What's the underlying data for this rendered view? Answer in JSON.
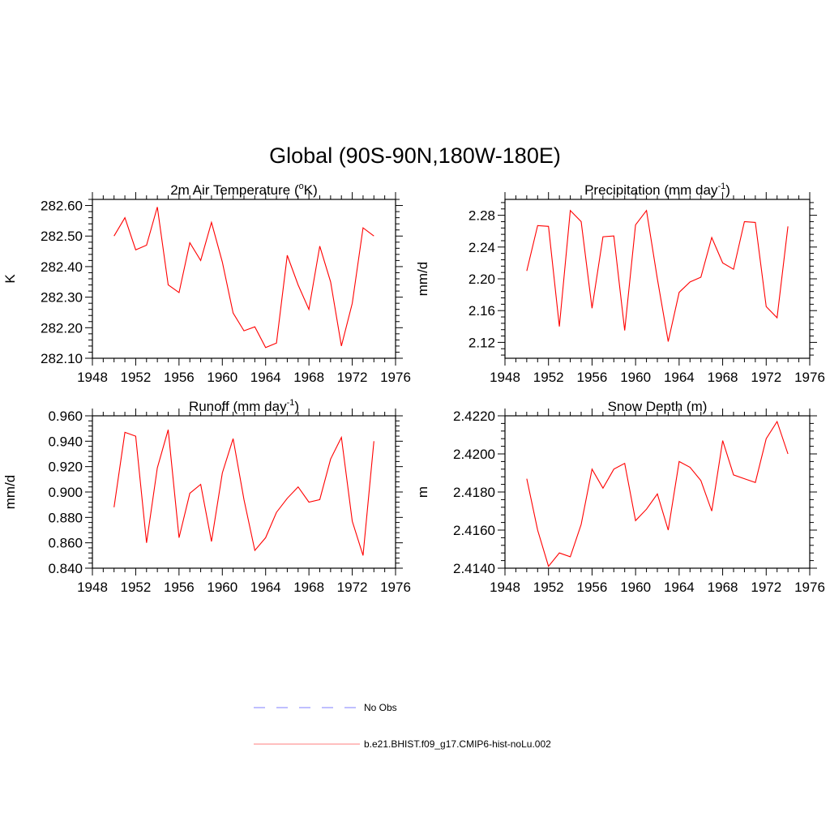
{
  "figure": {
    "title": "Global (90S-90N,180W-180E)"
  },
  "colors": {
    "model_line": "#ff0000",
    "obs_line": "#9999ff",
    "axis": "#000000"
  },
  "chart_data": [
    {
      "type": "line",
      "title_main": "2m Air Temperature (",
      "title_sup": "o",
      "title_rest": "K)",
      "ylabel": "K",
      "xlim": [
        1948,
        1976
      ],
      "ylim": [
        282.1,
        282.62
      ],
      "xticks": [
        1948,
        1952,
        1956,
        1960,
        1964,
        1968,
        1972,
        1976
      ],
      "yticks": [
        282.1,
        282.2,
        282.3,
        282.4,
        282.5,
        282.6
      ],
      "ytick_labels": [
        "282.10",
        "282.20",
        "282.30",
        "282.40",
        "282.50",
        "282.60"
      ],
      "series": [
        {
          "name": "b.e21.BHIST.f09_g17.CMIP6-hist-noLu.002",
          "x": [
            1950,
            1951,
            1952,
            1953,
            1954,
            1955,
            1956,
            1957,
            1958,
            1959,
            1960,
            1961,
            1962,
            1963,
            1964,
            1965,
            1966,
            1967,
            1968,
            1969,
            1970,
            1971,
            1972,
            1973,
            1974
          ],
          "y": [
            282.5,
            282.56,
            282.455,
            282.47,
            282.595,
            282.34,
            282.315,
            282.478,
            282.42,
            282.545,
            282.415,
            282.248,
            282.19,
            282.203,
            282.135,
            282.15,
            282.437,
            282.34,
            282.26,
            282.467,
            282.35,
            282.14,
            282.28,
            282.527,
            282.5
          ]
        }
      ]
    },
    {
      "type": "line",
      "title_main": "Precipitation (mm day",
      "title_sup": "-1",
      "title_rest": ")",
      "ylabel": "mm/d",
      "xlim": [
        1948,
        1976
      ],
      "ylim": [
        2.1,
        2.3
      ],
      "xticks": [
        1948,
        1952,
        1956,
        1960,
        1964,
        1968,
        1972,
        1976
      ],
      "yticks": [
        2.12,
        2.16,
        2.2,
        2.24,
        2.28
      ],
      "ytick_labels": [
        "2.12",
        "2.16",
        "2.20",
        "2.24",
        "2.28"
      ],
      "series": [
        {
          "name": "b.e21.BHIST.f09_g17.CMIP6-hist-noLu.002",
          "x": [
            1950,
            1951,
            1952,
            1953,
            1954,
            1955,
            1956,
            1957,
            1958,
            1959,
            1960,
            1961,
            1962,
            1963,
            1964,
            1965,
            1966,
            1967,
            1968,
            1969,
            1970,
            1971,
            1972,
            1973,
            1974
          ],
          "y": [
            2.21,
            2.267,
            2.266,
            2.14,
            2.286,
            2.272,
            2.163,
            2.253,
            2.254,
            2.135,
            2.268,
            2.286,
            2.2,
            2.121,
            2.183,
            2.196,
            2.202,
            2.252,
            2.22,
            2.212,
            2.272,
            2.271,
            2.165,
            2.151,
            2.266
          ]
        }
      ]
    },
    {
      "type": "line",
      "title_main": "Runoff (mm day",
      "title_sup": "-1",
      "title_rest": ")",
      "ylabel": "mm/d",
      "xlim": [
        1948,
        1976
      ],
      "ylim": [
        0.84,
        0.96
      ],
      "xticks": [
        1948,
        1952,
        1956,
        1960,
        1964,
        1968,
        1972,
        1976
      ],
      "yticks": [
        0.84,
        0.86,
        0.88,
        0.9,
        0.92,
        0.94,
        0.96
      ],
      "ytick_labels": [
        "0.840",
        "0.860",
        "0.880",
        "0.900",
        "0.920",
        "0.940",
        "0.960"
      ],
      "series": [
        {
          "name": "b.e21.BHIST.f09_g17.CMIP6-hist-noLu.002",
          "x": [
            1950,
            1951,
            1952,
            1953,
            1954,
            1955,
            1956,
            1957,
            1958,
            1959,
            1960,
            1961,
            1962,
            1963,
            1964,
            1965,
            1966,
            1967,
            1968,
            1969,
            1970,
            1971,
            1972,
            1973,
            1974
          ],
          "y": [
            0.888,
            0.947,
            0.944,
            0.86,
            0.919,
            0.949,
            0.864,
            0.899,
            0.906,
            0.861,
            0.915,
            0.942,
            0.894,
            0.854,
            0.864,
            0.884,
            0.895,
            0.904,
            0.892,
            0.894,
            0.926,
            0.943,
            0.877,
            0.85,
            0.94
          ]
        }
      ]
    },
    {
      "type": "line",
      "title_main": "Snow Depth (m)",
      "title_sup": "",
      "title_rest": "",
      "ylabel": "m",
      "xlim": [
        1948,
        1976
      ],
      "ylim": [
        2.414,
        2.422
      ],
      "xticks": [
        1948,
        1952,
        1956,
        1960,
        1964,
        1968,
        1972,
        1976
      ],
      "yticks": [
        2.414,
        2.416,
        2.418,
        2.42,
        2.422
      ],
      "ytick_labels": [
        "2.4140",
        "2.4160",
        "2.4180",
        "2.4200",
        "2.4220"
      ],
      "series": [
        {
          "name": "b.e21.BHIST.f09_g17.CMIP6-hist-noLu.002",
          "x": [
            1950,
            1951,
            1952,
            1953,
            1954,
            1955,
            1956,
            1957,
            1958,
            1959,
            1960,
            1961,
            1962,
            1963,
            1964,
            1965,
            1966,
            1967,
            1968,
            1969,
            1970,
            1971,
            1972,
            1973,
            1974
          ],
          "y": [
            2.4187,
            2.416,
            2.4141,
            2.4148,
            2.4146,
            2.4163,
            2.4192,
            2.4182,
            2.4192,
            2.4195,
            2.4165,
            2.4171,
            2.4179,
            2.416,
            2.4196,
            2.4193,
            2.4186,
            2.417,
            2.4207,
            2.4189,
            2.4187,
            2.4185,
            2.4208,
            2.4217,
            2.42
          ]
        }
      ]
    }
  ],
  "legend": {
    "items": [
      {
        "label": "No Obs",
        "style": "dashed"
      },
      {
        "label": "b.e21.BHIST.f09_g17.CMIP6-hist-noLu.002",
        "style": "solid"
      }
    ]
  }
}
